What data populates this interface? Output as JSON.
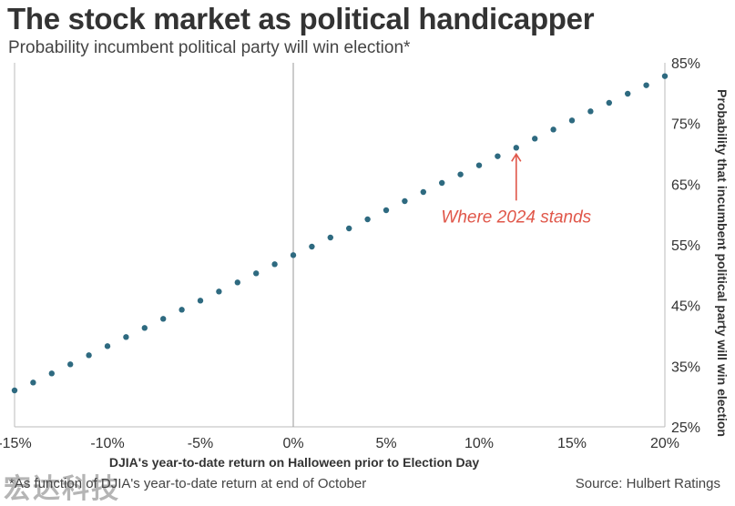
{
  "header": {
    "title": "The stock market as political handicapper",
    "subtitle": "Probability incumbent political party will win election*"
  },
  "footer": {
    "footnote": "*As function of DJIA's year-to-date return at end of October",
    "source": "Source: Hulbert Ratings",
    "watermark": "宏达科技"
  },
  "colors": {
    "points": "#2e6a80",
    "annotation": "#e0574a",
    "zero_line": "#999999",
    "frame": "#bbbbbb"
  },
  "chart_data": {
    "type": "scatter",
    "title": "The stock market as political handicapper",
    "subtitle": "Probability incumbent political party will win election*",
    "xlabel": "DJIA's year-to-date return on Halloween prior to Election Day",
    "ylabel": "Probability that incumbent political party will win election",
    "xlim": [
      -15,
      20
    ],
    "ylim": [
      25,
      85
    ],
    "x_ticks": [
      "-15%",
      "-10%",
      "-5%",
      "0%",
      "5%",
      "10%",
      "15%",
      "20%"
    ],
    "y_ticks": [
      "25%",
      "35%",
      "45%",
      "55%",
      "65%",
      "75%",
      "85%"
    ],
    "y_axis_side": "right",
    "grid": false,
    "points": [
      {
        "x": -15,
        "y": 31.0
      },
      {
        "x": -14,
        "y": 32.3
      },
      {
        "x": -13,
        "y": 33.8
      },
      {
        "x": -12,
        "y": 35.3
      },
      {
        "x": -11,
        "y": 36.8
      },
      {
        "x": -10,
        "y": 38.3
      },
      {
        "x": -9,
        "y": 39.8
      },
      {
        "x": -8,
        "y": 41.3
      },
      {
        "x": -7,
        "y": 42.8
      },
      {
        "x": -6,
        "y": 44.3
      },
      {
        "x": -5,
        "y": 45.8
      },
      {
        "x": -4,
        "y": 47.3
      },
      {
        "x": -3,
        "y": 48.8
      },
      {
        "x": -2,
        "y": 50.3
      },
      {
        "x": -1,
        "y": 51.8
      },
      {
        "x": 0,
        "y": 53.3
      },
      {
        "x": 1,
        "y": 54.7
      },
      {
        "x": 2,
        "y": 56.2
      },
      {
        "x": 3,
        "y": 57.7
      },
      {
        "x": 4,
        "y": 59.2
      },
      {
        "x": 5,
        "y": 60.7
      },
      {
        "x": 6,
        "y": 62.2
      },
      {
        "x": 7,
        "y": 63.7
      },
      {
        "x": 8,
        "y": 65.2
      },
      {
        "x": 9,
        "y": 66.6
      },
      {
        "x": 10,
        "y": 68.1
      },
      {
        "x": 11,
        "y": 69.6
      },
      {
        "x": 12,
        "y": 71.0
      },
      {
        "x": 13,
        "y": 72.5
      },
      {
        "x": 14,
        "y": 74.0
      },
      {
        "x": 15,
        "y": 75.5
      },
      {
        "x": 16,
        "y": 77.0
      },
      {
        "x": 17,
        "y": 78.4
      },
      {
        "x": 18,
        "y": 79.9
      },
      {
        "x": 19,
        "y": 81.3
      },
      {
        "x": 20,
        "y": 82.8
      }
    ],
    "annotation": {
      "text": "Where 2024 stands",
      "x": 12,
      "y": 71.0
    }
  }
}
